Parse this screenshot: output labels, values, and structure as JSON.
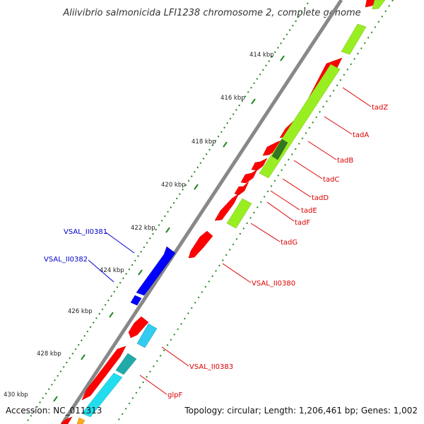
{
  "title": "Aliivibrio salmonicida LFI1238 chromosome 2, complete genome",
  "footer": {
    "accession": "Accession: NC_011313",
    "topology": "Topology: circular; Length: 1,206,461 bp; Genes: 1,002"
  },
  "colors": {
    "forward_cds": "#ff0000",
    "reverse_cds": "#0000ff",
    "orf": "#99ee22",
    "orf_dark": "#337722",
    "hit": "#22ccdd",
    "backbone": "#888888",
    "tick": "#228822",
    "label_red": "#dd0000",
    "label_blue": "#0000cc"
  },
  "scale_ticks": [
    "414 kbp",
    "416 kbp",
    "418 kbp",
    "420 kbp",
    "422 kbp",
    "424 kbp",
    "426 kbp",
    "428 kbp",
    "430 kbp"
  ],
  "gene_labels": [
    {
      "text": "tadZ",
      "strand": "forward"
    },
    {
      "text": "tadA",
      "strand": "forward"
    },
    {
      "text": "tadB",
      "strand": "forward"
    },
    {
      "text": "tadC",
      "strand": "forward"
    },
    {
      "text": "tadD",
      "strand": "forward"
    },
    {
      "text": "tadE",
      "strand": "forward"
    },
    {
      "text": "tadF",
      "strand": "forward"
    },
    {
      "text": "tadG",
      "strand": "forward"
    },
    {
      "text": "VSAL_II0380",
      "strand": "forward"
    },
    {
      "text": "VSAL_II0383",
      "strand": "forward"
    },
    {
      "text": "glpF",
      "strand": "forward"
    },
    {
      "text": "VSAL_II0381",
      "strand": "reverse"
    },
    {
      "text": "VSAL_II0382",
      "strand": "reverse"
    }
  ]
}
